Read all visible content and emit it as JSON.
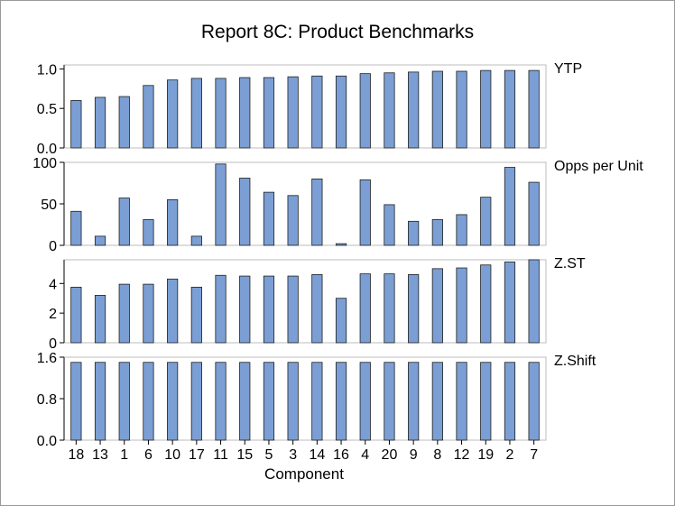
{
  "chart_data": {
    "type": "bar",
    "title": "Report 8C: Product Benchmarks",
    "xlabel": "Component",
    "categories": [
      "18",
      "13",
      "1",
      "6",
      "10",
      "17",
      "11",
      "15",
      "5",
      "3",
      "14",
      "16",
      "4",
      "20",
      "9",
      "8",
      "12",
      "19",
      "2",
      "7"
    ],
    "bar_color": "#7b9fd4",
    "bar_edge_color": "#1f1f1f",
    "panels": [
      {
        "name": "YTP",
        "ylim": [
          0,
          1.05
        ],
        "yticks": [
          0.0,
          0.5,
          1.0
        ],
        "ytick_labels": [
          "0.0",
          "0.5",
          "1.0"
        ],
        "values": [
          0.6,
          0.64,
          0.65,
          0.79,
          0.86,
          0.88,
          0.88,
          0.89,
          0.89,
          0.9,
          0.91,
          0.91,
          0.94,
          0.95,
          0.96,
          0.97,
          0.97,
          0.98,
          0.98,
          0.98
        ]
      },
      {
        "name": "Opps per Unit",
        "ylim": [
          0,
          100
        ],
        "yticks": [
          0,
          50,
          100
        ],
        "ytick_labels": [
          "0",
          "50",
          "100"
        ],
        "values": [
          41,
          11,
          57,
          31,
          55,
          11,
          98,
          81,
          64,
          60,
          80,
          2,
          79,
          49,
          29,
          31,
          37,
          58,
          94,
          76
        ]
      },
      {
        "name": "Z.ST",
        "ylim": [
          0,
          5.6
        ],
        "yticks": [
          0,
          2,
          4
        ],
        "ytick_labels": [
          "0",
          "2",
          "4"
        ],
        "values": [
          3.75,
          3.2,
          3.95,
          3.95,
          4.3,
          3.75,
          4.55,
          4.5,
          4.5,
          4.5,
          4.6,
          3.0,
          4.65,
          4.65,
          4.6,
          5.0,
          5.05,
          5.25,
          5.45,
          5.6
        ]
      },
      {
        "name": "Z.Shift",
        "ylim": [
          0,
          1.6
        ],
        "yticks": [
          0.0,
          0.8,
          1.6
        ],
        "ytick_labels": [
          "0.0",
          "0.8",
          "1.6"
        ],
        "values": [
          1.5,
          1.5,
          1.5,
          1.5,
          1.5,
          1.5,
          1.5,
          1.5,
          1.5,
          1.5,
          1.5,
          1.5,
          1.5,
          1.5,
          1.5,
          1.5,
          1.5,
          1.5,
          1.5,
          1.5
        ]
      }
    ]
  }
}
